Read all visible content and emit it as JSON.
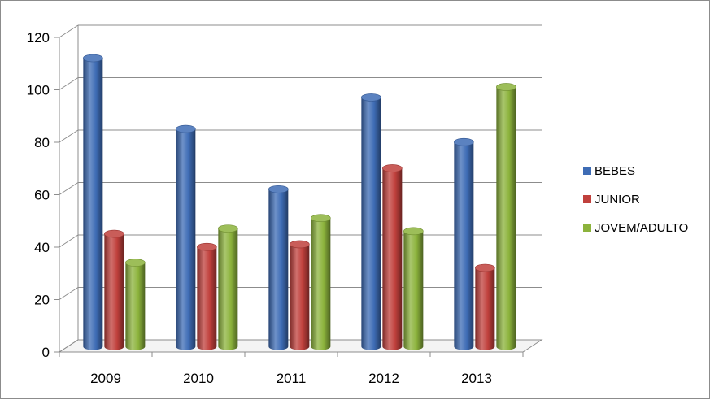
{
  "chart_data": {
    "type": "bar",
    "title": "",
    "xlabel": "",
    "ylabel": "",
    "categories": [
      "2009",
      "2010",
      "2011",
      "2012",
      "2013"
    ],
    "series": [
      {
        "name": "BEBES",
        "color": "#3e6cb5",
        "values": [
          110,
          83,
          60,
          95,
          78
        ]
      },
      {
        "name": "JUNIOR",
        "color": "#c0403c",
        "values": [
          43,
          38,
          39,
          68,
          30
        ]
      },
      {
        "name": "JOVEM/ADULTO",
        "color": "#8cb33c",
        "values": [
          32,
          45,
          49,
          44,
          99
        ]
      }
    ],
    "ylim": [
      0,
      120
    ],
    "yticks": [
      "0",
      "20",
      "40",
      "60",
      "80",
      "100",
      "120"
    ],
    "grid": true,
    "legend_position": "right",
    "style": "3d-cylinder"
  }
}
